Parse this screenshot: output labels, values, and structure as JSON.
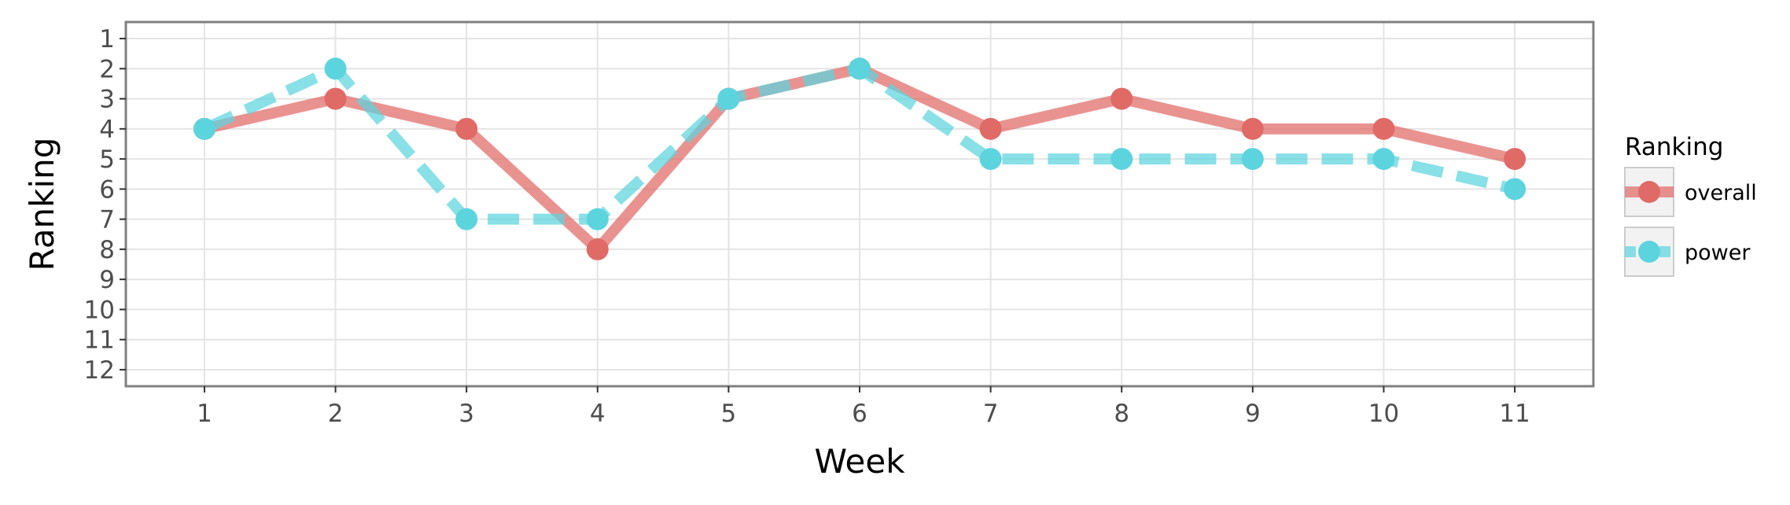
{
  "chart_data": {
    "type": "line",
    "xlabel": "Week",
    "ylabel": "Ranking",
    "x": [
      1,
      2,
      3,
      4,
      5,
      6,
      7,
      8,
      9,
      10,
      11
    ],
    "xlim": [
      0.4,
      11.6
    ],
    "ylim": [
      12.55,
      0.45
    ],
    "y_reversed": true,
    "x_ticks": [
      "1",
      "2",
      "3",
      "4",
      "5",
      "6",
      "7",
      "8",
      "9",
      "10",
      "11"
    ],
    "y_ticks": [
      "1",
      "2",
      "3",
      "4",
      "5",
      "6",
      "7",
      "8",
      "9",
      "10",
      "11",
      "12"
    ],
    "grid": true,
    "legend": {
      "title": "Ranking",
      "position": "right",
      "entries": [
        "overall",
        "power"
      ]
    },
    "series": [
      {
        "name": "overall",
        "color": "#E06A66",
        "line_style": "solid",
        "values": [
          4,
          3,
          4,
          8,
          3,
          2,
          4,
          3,
          4,
          4,
          5
        ]
      },
      {
        "name": "power",
        "color": "#5CD4DE",
        "line_style": "dashed",
        "values": [
          4,
          2,
          7,
          7,
          3,
          2,
          5,
          5,
          5,
          5,
          6
        ]
      }
    ]
  }
}
